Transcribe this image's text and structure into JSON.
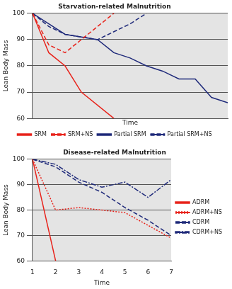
{
  "chart_data": [
    {
      "type": "line",
      "title": "Starvation-related Malnutrition",
      "x_label": "Time",
      "y_label": "Lean Body Mass",
      "xlim": [
        0,
        12
      ],
      "ylim": [
        60,
        100
      ],
      "yticks": [
        60,
        70,
        80,
        90,
        100
      ],
      "grid": true,
      "legend": "bottom",
      "tick_labels": "y",
      "series": [
        {
          "name": "SRM",
          "color": "#e8231b",
          "line_style": "solid",
          "x": [
            0,
            1,
            2,
            3,
            5
          ],
          "values": [
            100,
            85,
            80,
            70,
            60
          ]
        },
        {
          "name": "SRM+NS",
          "color": "#e8231b",
          "line_style": "dashed",
          "x": [
            0,
            1,
            2,
            3,
            4,
            5
          ],
          "values": [
            100,
            88,
            85,
            90,
            95,
            100
          ]
        },
        {
          "name": "Partial SRM",
          "color": "#1f2a7a",
          "line_style": "solid",
          "x": [
            0,
            1,
            2,
            4,
            5,
            6,
            7,
            8,
            9,
            10,
            11,
            12
          ],
          "values": [
            100,
            96,
            92,
            90,
            85,
            83,
            80,
            78,
            75,
            75,
            68,
            66
          ]
        },
        {
          "name": "Partial SRM+NS",
          "color": "#1f2a7a",
          "line_style": "dashed",
          "x": [
            0,
            1,
            2,
            4,
            5,
            6,
            7
          ],
          "values": [
            100,
            95,
            92,
            90,
            93,
            96,
            100
          ]
        }
      ]
    },
    {
      "type": "line",
      "title": "Disease-related Malnutrition",
      "x_label": "Time",
      "y_label": "Lean Body Mass",
      "x": [
        1,
        2,
        3,
        4,
        5,
        6,
        7
      ],
      "xlim": [
        1,
        7
      ],
      "xticks": [
        1,
        2,
        3,
        4,
        5,
        6,
        7
      ],
      "ylim": [
        60,
        100
      ],
      "yticks": [
        60,
        70,
        80,
        90,
        100
      ],
      "grid": true,
      "legend": "right",
      "series": [
        {
          "name": "ADRM",
          "color": "#e8231b",
          "line_style": "solid",
          "x": [
            1,
            2
          ],
          "values": [
            100,
            60
          ]
        },
        {
          "name": "ADRM+NS",
          "color": "#e8231b",
          "line_style": "dotted",
          "values": [
            100,
            80,
            81,
            80,
            79,
            74,
            69
          ]
        },
        {
          "name": "CDRM",
          "color": "#1f2a7a",
          "line_style": "dashed",
          "values": [
            100,
            97,
            91,
            87,
            81,
            76,
            70
          ]
        },
        {
          "name": "CDRM+NS",
          "color": "#1f2a7a",
          "line_style": "dashdot",
          "values": [
            100,
            98,
            92,
            89,
            91,
            85,
            92
          ]
        }
      ]
    }
  ]
}
